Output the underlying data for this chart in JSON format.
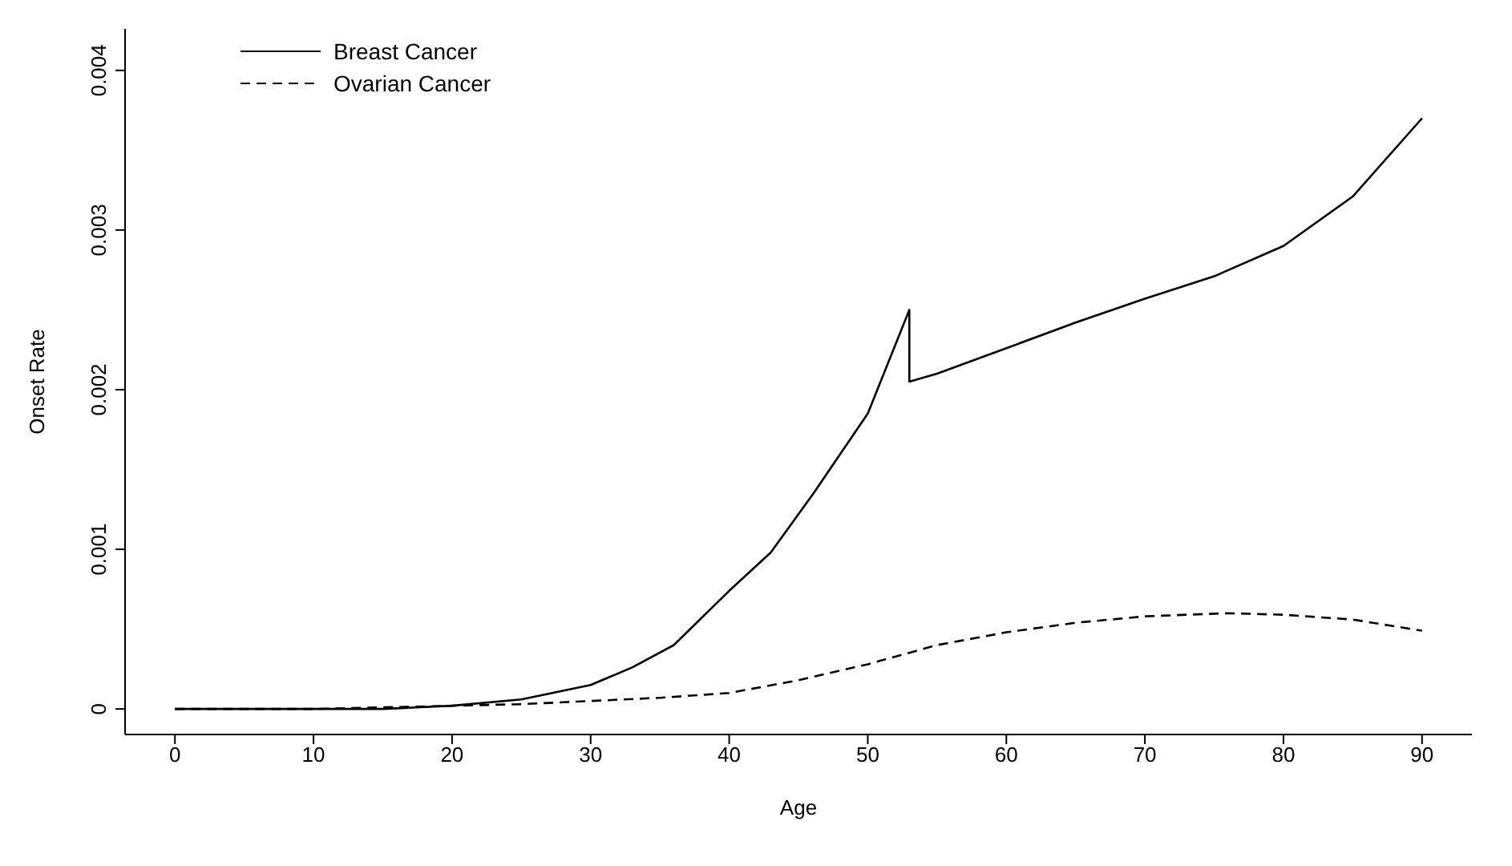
{
  "chart_data": {
    "type": "line",
    "xlabel": "Age",
    "ylabel": "Onset Rate",
    "xlim": [
      -3.6,
      93.6
    ],
    "ylim": [
      -0.00016,
      0.00426
    ],
    "xticks": [
      0,
      10,
      20,
      30,
      40,
      50,
      60,
      70,
      80,
      90
    ],
    "yticks": [
      0,
      0.001,
      0.002,
      0.003,
      0.004
    ],
    "legend": "top left",
    "marker": "none",
    "series": [
      {
        "name": "Breast Cancer",
        "color": "#000000",
        "line_style": "solid",
        "x": [
          0,
          10,
          15,
          20,
          25,
          30,
          33,
          36,
          40,
          43,
          46,
          50,
          53,
          53,
          55,
          60,
          65,
          70,
          75,
          80,
          85,
          90
        ],
        "values": [
          0,
          0,
          0,
          2e-05,
          6e-05,
          0.00015,
          0.00026,
          0.0004,
          0.00074,
          0.00098,
          0.00134,
          0.00185,
          0.0025,
          0.00205,
          0.0021,
          0.00226,
          0.00242,
          0.00257,
          0.00271,
          0.0029,
          0.00321,
          0.0037
        ]
      },
      {
        "name": "Ovarian Cancer",
        "color": "#000000",
        "line_style": "dashed",
        "x": [
          0,
          10,
          20,
          25,
          30,
          35,
          40,
          45,
          50,
          55,
          60,
          65,
          70,
          76,
          80,
          85,
          90
        ],
        "values": [
          0,
          0,
          2e-05,
          3e-05,
          5e-05,
          7e-05,
          0.0001,
          0.00018,
          0.00028,
          0.0004,
          0.00048,
          0.00054,
          0.00058,
          0.0006,
          0.00059,
          0.00056,
          0.00049
        ]
      }
    ]
  }
}
